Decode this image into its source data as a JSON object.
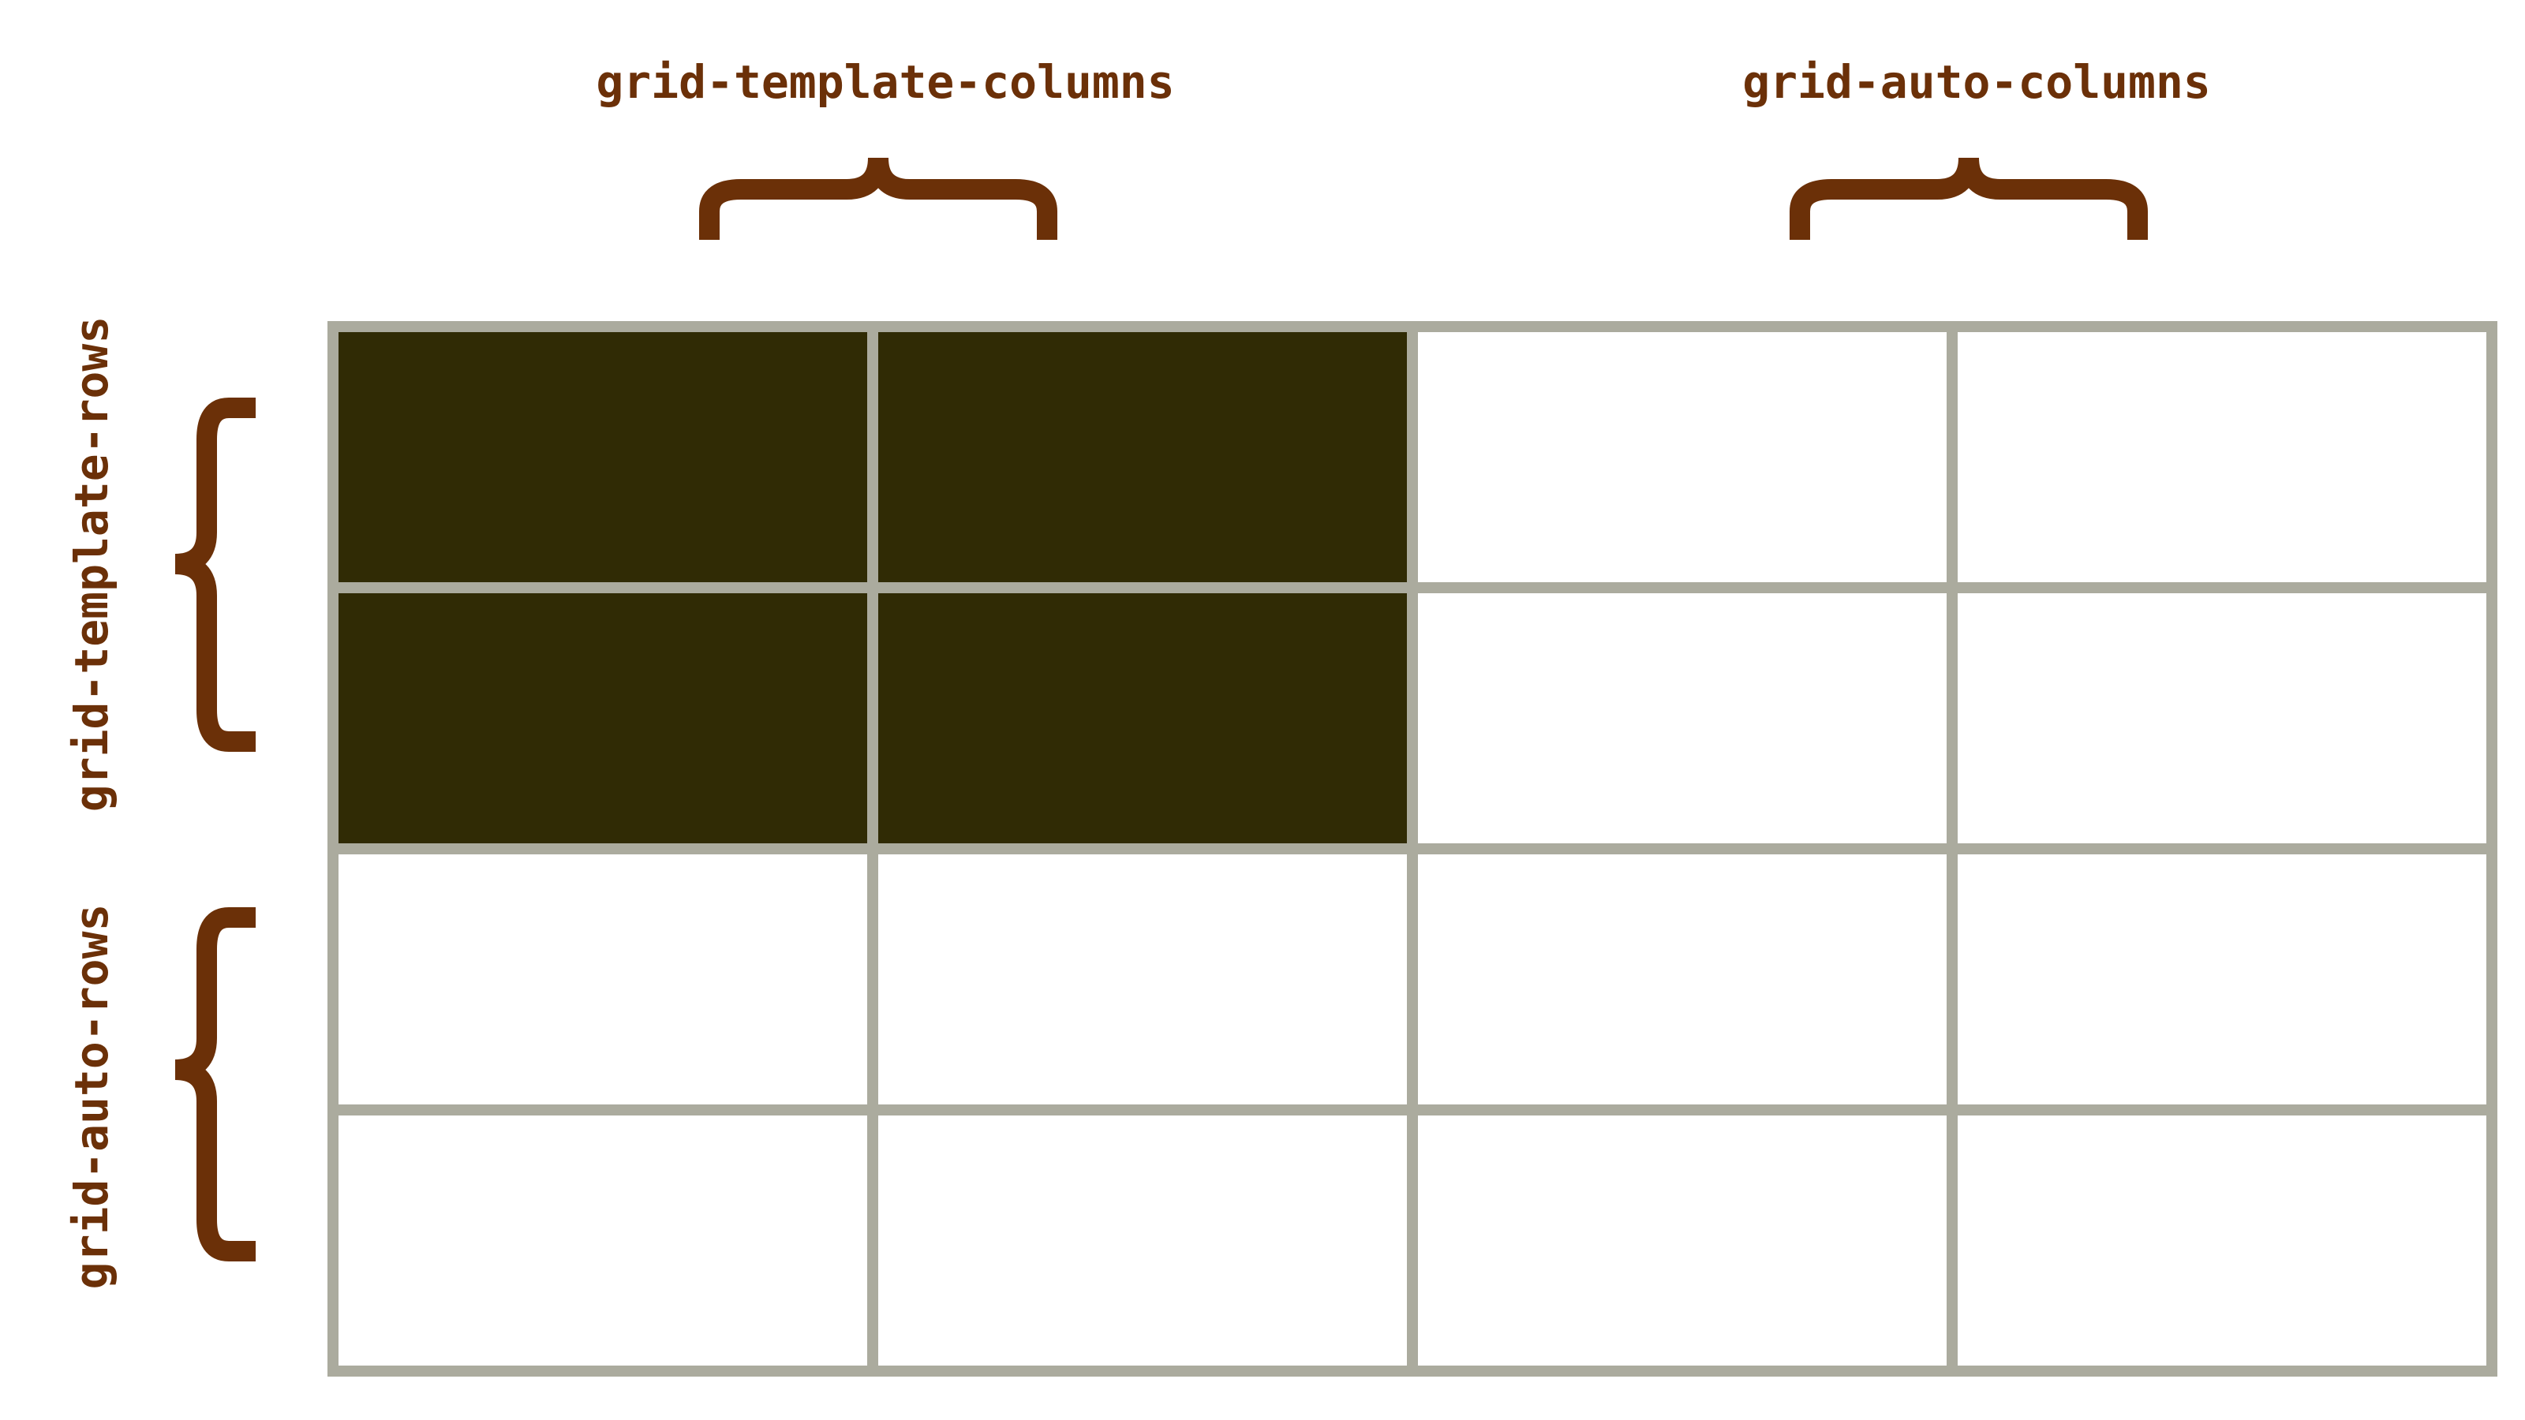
{
  "labels": {
    "template_columns": "grid-template-columns",
    "auto_columns": "grid-auto-columns",
    "template_rows": "grid-template-rows",
    "auto_rows": "grid-auto-rows"
  },
  "grid": {
    "columns": 4,
    "rows": 4,
    "explicit_columns": 2,
    "explicit_rows": 2
  },
  "colors": {
    "label": "#6b3008",
    "brace": "#6b3008",
    "grid_line": "#abab9e",
    "explicit_cell_fill": "#302b05",
    "implicit_cell_fill": "#ffffff",
    "background": "#ffffff"
  }
}
